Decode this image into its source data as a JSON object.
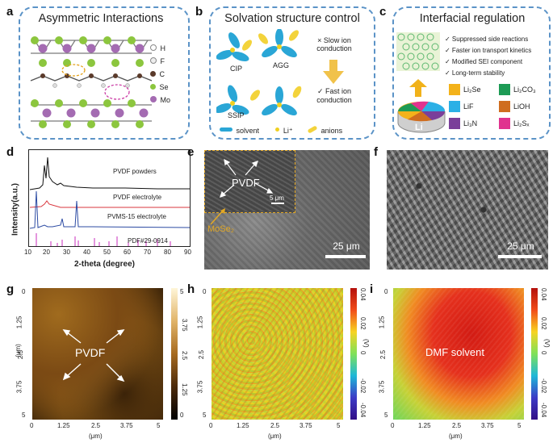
{
  "panels": {
    "a": {
      "label": "a",
      "title": "Asymmetric Interactions",
      "legend": [
        "H",
        "F",
        "C",
        "Se",
        "Mo"
      ]
    },
    "b": {
      "label": "b",
      "title": "Solvation structure control",
      "cip": "CIP",
      "agg": "AGG",
      "ssip": "SSIP",
      "slow": "× Slow ion conduction",
      "fast": "✓ Fast ion conduction",
      "legend": {
        "solvent": "solvent",
        "li": "Li⁺",
        "anions": "anions"
      }
    },
    "c": {
      "label": "c",
      "title": "Interfacial regulation",
      "checks": [
        "✓ Suppressed side reactions",
        "✓ Faster ion transport kinetics",
        "✓ Modified SEI component",
        "✓ Long-term stability"
      ],
      "li": "Li",
      "legend": [
        "Li₂Se",
        "Li₂CO₃",
        "LiF",
        "LiOH",
        "Li₃N",
        "Li₂Sₓ"
      ],
      "legend_colors": [
        "#f3b21a",
        "#1d9b55",
        "#2bb0e6",
        "#cf6d1f",
        "#7a3f9a",
        "#e0338f"
      ]
    },
    "d": {
      "label": "d",
      "ylabel": "Intensity(a.u.)",
      "xlabel": "2-theta (degree)",
      "curves": [
        "PVDF powders",
        "PVDF electrolyte",
        "PVMS-15 electrolyte",
        "PDF#29-0914"
      ],
      "xticks": [
        "10",
        "20",
        "30",
        "40",
        "50",
        "60",
        "70",
        "80",
        "90"
      ]
    },
    "e": {
      "label": "e",
      "pvdf": "PVDF",
      "inset_scale": "5 μm",
      "mose": "MoSe₂",
      "scale": "25 μm"
    },
    "f": {
      "label": "f",
      "scale": "25 μm"
    },
    "g": {
      "label": "g",
      "pvdf": "PVDF",
      "unit": "(μm)",
      "xticks": [
        "0",
        "1.25",
        "2.5",
        "3.75",
        "5"
      ],
      "yticks": [
        "0",
        "1.25",
        "2.5",
        "3.75",
        "5"
      ],
      "cbar": [
        "5",
        "3.75",
        "2.5",
        "1.25",
        "0"
      ]
    },
    "h": {
      "label": "h",
      "unit": "(μm)",
      "vunit": "(V)",
      "xticks": [
        "0",
        "1.25",
        "2.5",
        "3.75",
        "5"
      ],
      "yticks": [
        "0",
        "1.25",
        "2.5",
        "3.75",
        "5"
      ],
      "cbar": [
        "0.04",
        "0.02",
        "0",
        "-0.02",
        "-0.04"
      ]
    },
    "i": {
      "label": "i",
      "solvent": "DMF solvent",
      "unit": "(μm)",
      "vunit": "(V)",
      "xticks": [
        "0",
        "1.25",
        "2.5",
        "3.75",
        "5"
      ],
      "yticks": [
        "0",
        "1.25",
        "2.5",
        "3.75",
        "5"
      ],
      "cbar": [
        "0.04",
        "0.02",
        "0",
        "-0.02",
        "-0.04"
      ]
    }
  }
}
